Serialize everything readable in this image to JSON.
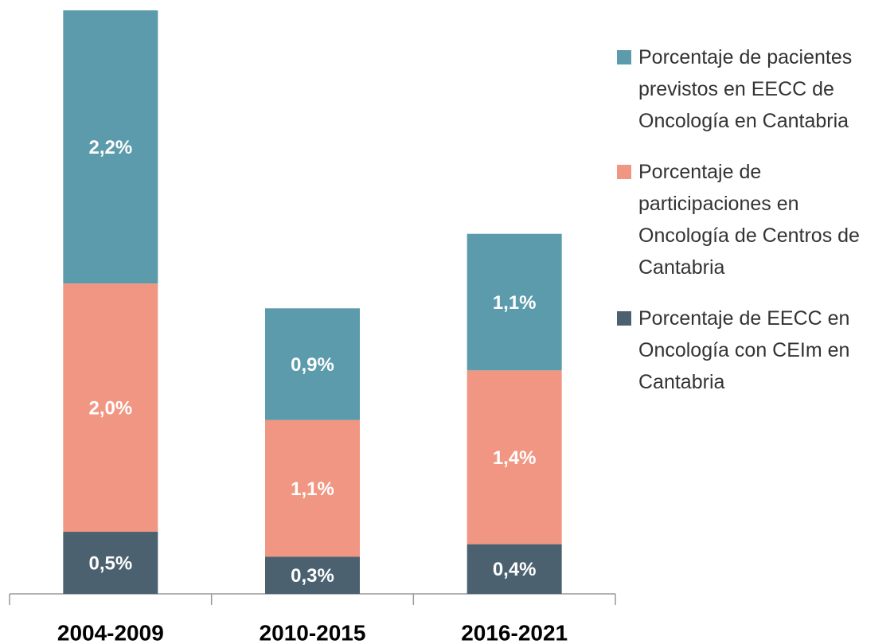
{
  "chart_data": {
    "type": "stacked_bar",
    "categories": [
      "2004-2009",
      "2010-2015",
      "2016-2021"
    ],
    "series": [
      {
        "name": "Porcentaje de EECC en Oncología con CEIm en Cantabria",
        "color": "#4b6170",
        "values": [
          0.5,
          0.3,
          0.4
        ],
        "value_labels": [
          "0,5%",
          "0,3%",
          "0,4%"
        ]
      },
      {
        "name": "Porcentaje de participaciones en Oncología de Centros de Cantabria",
        "color": "#f19682",
        "values": [
          2.0,
          1.1,
          1.4
        ],
        "value_labels": [
          "2,0%",
          "1,1%",
          "1,4%"
        ]
      },
      {
        "name": "Porcentaje de pacientes previstos en EECC de Oncología en Cantabria",
        "color": "#5b9bab",
        "values": [
          2.2,
          0.9,
          1.1
        ],
        "value_labels": [
          "2,2%",
          "0,9%",
          "1,1%"
        ]
      }
    ]
  }
}
